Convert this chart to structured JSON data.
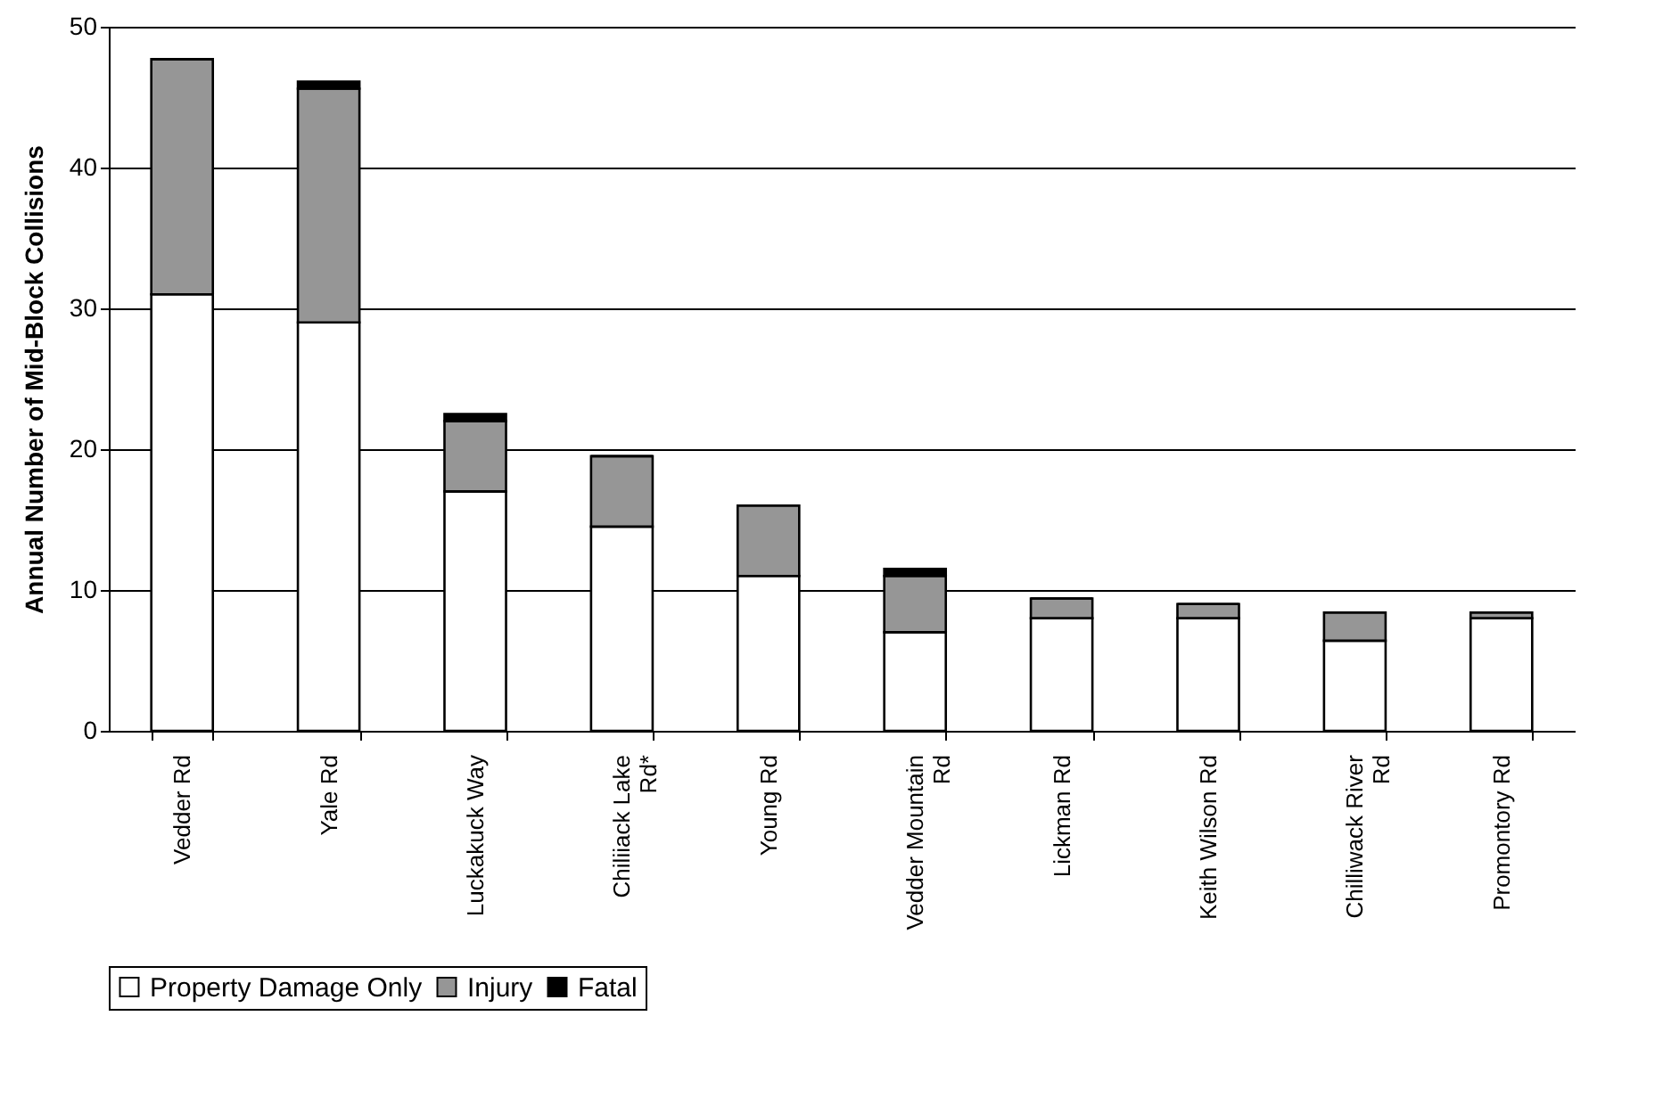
{
  "chart_data": {
    "type": "bar",
    "ylabel": "Annual Number of Mid-Block Collisions",
    "categories": [
      "Vedder Rd",
      "Yale Rd",
      "Luckakuck Way",
      "Chiliiack Lake Rd*",
      "Young Rd",
      "Vedder Mountain Rd",
      "Lickman Rd",
      "Keith Wilson Rd",
      "Chilliwack River Rd",
      "Promontory Rd"
    ],
    "stacked": true,
    "series": [
      {
        "name": "Property Damage Only",
        "color": "#ffffff",
        "values": [
          31,
          29,
          17,
          14.5,
          11,
          7,
          8,
          8,
          6.4,
          8
        ]
      },
      {
        "name": "Injury",
        "color": "#969696",
        "values": [
          16.7,
          16.6,
          5,
          5,
          5,
          4,
          1.4,
          1,
          2,
          0.4
        ]
      },
      {
        "name": "Fatal",
        "color": "#000000",
        "values": [
          0,
          0.5,
          0.5,
          0,
          0,
          0.5,
          0,
          0,
          0,
          0
        ]
      }
    ],
    "ylim": [
      0,
      50
    ],
    "yticks": [
      0,
      10,
      20,
      30,
      40,
      50
    ],
    "grid": "y",
    "legend": "bottom"
  }
}
